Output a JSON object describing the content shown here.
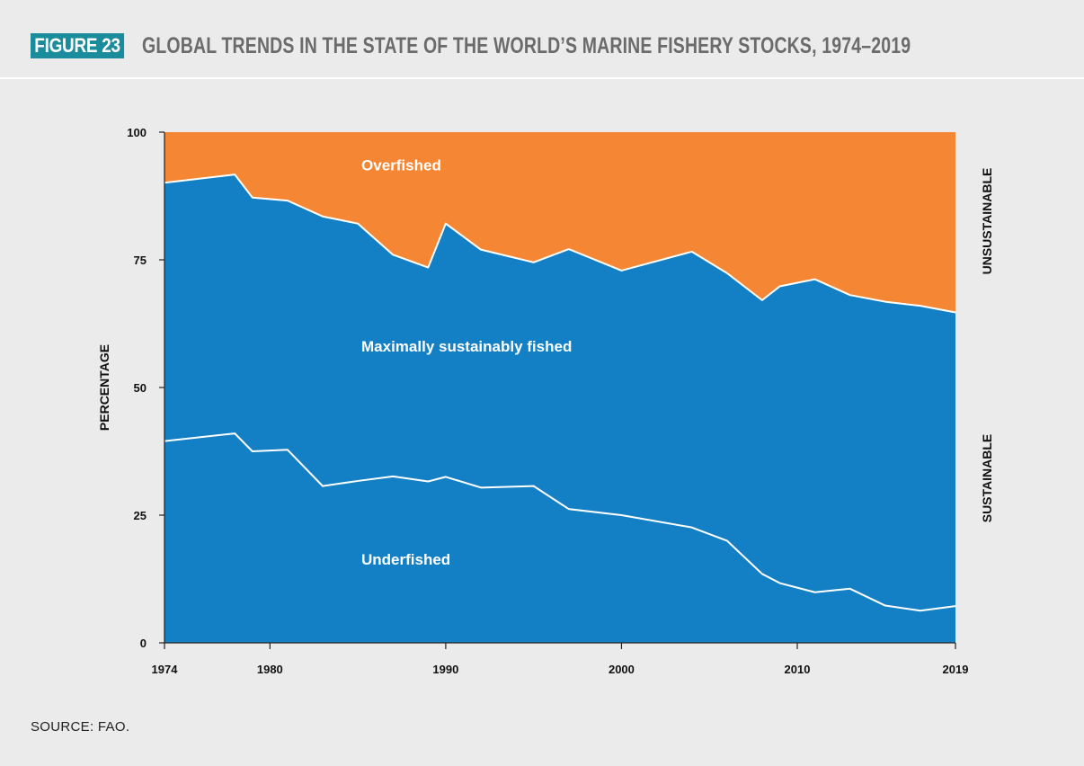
{
  "figure_label": "FIGURE 23",
  "title": "GLOBAL TRENDS IN THE STATE OF THE WORLD’S MARINE FISHERY STOCKS, 1974–2019",
  "source": "SOURCE: FAO.",
  "colors": {
    "badge": "#1a8c9c",
    "overfished": "#f58634",
    "sustainable": "#1380c6",
    "line": "#ffffff",
    "title": "#6b6b6b"
  },
  "chart_data": {
    "type": "area",
    "ylabel": "PERCENTAGE",
    "xlim": [
      1974,
      2019
    ],
    "ylim": [
      0,
      100
    ],
    "x_ticks": [
      "1974",
      "1980",
      "1990",
      "2000",
      "2010",
      "2019"
    ],
    "x_tick_values": [
      1974,
      1980,
      1990,
      2000,
      2010,
      2019
    ],
    "y_ticks": [
      "0",
      "25",
      "50",
      "75",
      "100"
    ],
    "y_tick_values": [
      0,
      25,
      50,
      75,
      100
    ],
    "x": [
      1974,
      1978,
      1979,
      1981,
      1983,
      1985,
      1987,
      1989,
      1990,
      1992,
      1995,
      1997,
      2000,
      2004,
      2006,
      2008,
      2009,
      2011,
      2013,
      2015,
      2017,
      2019
    ],
    "series": [
      {
        "name": "Underfished",
        "cumulative_top": [
          39.5,
          41.0,
          37.5,
          37.8,
          30.7,
          31.7,
          32.6,
          31.6,
          32.5,
          30.4,
          30.7,
          26.2,
          25.0,
          22.6,
          20.0,
          13.5,
          11.7,
          9.9,
          10.6,
          7.3,
          6.3,
          7.2
        ]
      },
      {
        "name": "Maximally sustainably fished",
        "cumulative_top": [
          90.1,
          91.7,
          87.2,
          86.6,
          83.5,
          82.1,
          76.0,
          73.5,
          82.1,
          77.0,
          74.5,
          77.1,
          72.9,
          76.6,
          72.4,
          67.1,
          69.8,
          71.2,
          68.1,
          66.8,
          66.0,
          64.7
        ]
      },
      {
        "name": "Overfished",
        "cumulative_top": [
          100,
          100,
          100,
          100,
          100,
          100,
          100,
          100,
          100,
          100,
          100,
          100,
          100,
          100,
          100,
          100,
          100,
          100,
          100,
          100,
          100,
          100
        ]
      }
    ],
    "side_labels": [
      "UNSUSTAINABLE",
      "SUSTAINABLE"
    ]
  }
}
